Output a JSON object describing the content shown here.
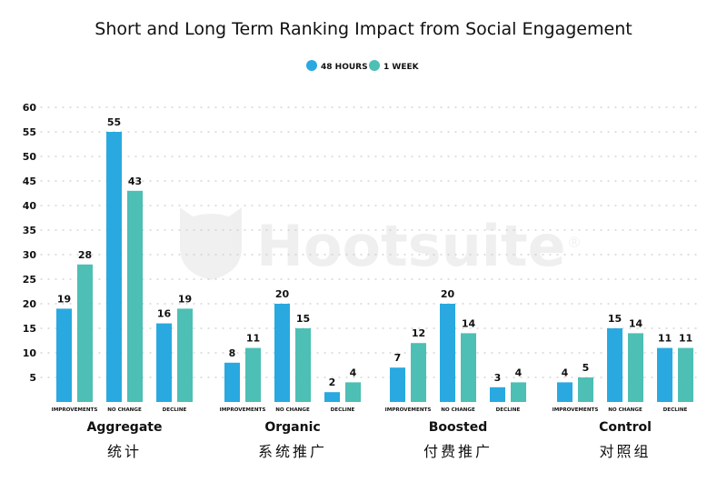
{
  "chart_data": {
    "type": "bar",
    "title": "Short and Long Term Ranking Impact from Social Engagement",
    "legend_position": "top-center",
    "grid": true,
    "ylim": [
      0,
      60
    ],
    "yticks": [
      5,
      10,
      15,
      20,
      25,
      30,
      35,
      40,
      45,
      50,
      55,
      60
    ],
    "colors": {
      "48 HOURS": "#29A9E0",
      "1 WEEK": "#4DBFB4"
    },
    "subcategories": [
      "IMPROVEMENTS",
      "NO CHANGE",
      "DECLINE"
    ],
    "groups": [
      {
        "name": "Aggregate",
        "name_zh": "统计",
        "48h": [
          19,
          55,
          16
        ],
        "1w": [
          28,
          43,
          19
        ]
      },
      {
        "name": "Organic",
        "name_zh": "系统推广",
        "48h": [
          8,
          20,
          2
        ],
        "1w": [
          11,
          15,
          4
        ]
      },
      {
        "name": "Boosted",
        "name_zh": "付费推广",
        "48h": [
          7,
          20,
          3
        ],
        "1w": [
          12,
          14,
          4
        ]
      },
      {
        "name": "Control",
        "name_zh": "对照组",
        "48h": [
          4,
          15,
          11
        ],
        "1w": [
          5,
          14,
          11
        ]
      }
    ],
    "series": [
      {
        "name": "48 HOURS"
      },
      {
        "name": "1 WEEK"
      }
    ]
  },
  "watermark": "Hootsuite®"
}
